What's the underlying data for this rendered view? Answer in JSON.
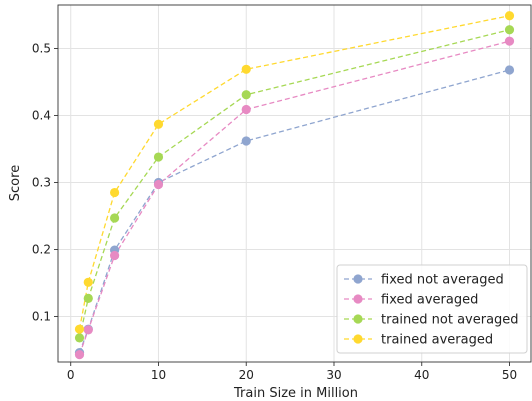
{
  "chart_data": {
    "type": "line",
    "title": "",
    "xlabel": "Train Size in Million",
    "ylabel": "Score",
    "x": [
      1,
      2,
      5,
      10,
      20,
      50
    ],
    "xlim": [
      -1.45,
      52.45
    ],
    "ylim": [
      0.032,
      0.565
    ],
    "xticks": [
      "0",
      "10",
      "20",
      "30",
      "40",
      "50"
    ],
    "yticks": [
      "0.1",
      "0.2",
      "0.3",
      "0.4",
      "0.5"
    ],
    "grid": true,
    "legend_position": "lower-right",
    "series": [
      {
        "name": "fixed not averaged",
        "color": "#8fa5cf",
        "values": [
          0.046,
          0.081,
          0.199,
          0.3,
          0.362,
          0.468
        ]
      },
      {
        "name": "fixed averaged",
        "color": "#e78ac3",
        "values": [
          0.043,
          0.08,
          0.191,
          0.297,
          0.409,
          0.511
        ]
      },
      {
        "name": "trained not averaged",
        "color": "#a6d854",
        "values": [
          0.068,
          0.127,
          0.247,
          0.338,
          0.431,
          0.528
        ]
      },
      {
        "name": "trained averaged",
        "color": "#ffd92f",
        "values": [
          0.081,
          0.151,
          0.285,
          0.387,
          0.469,
          0.549
        ]
      }
    ]
  }
}
